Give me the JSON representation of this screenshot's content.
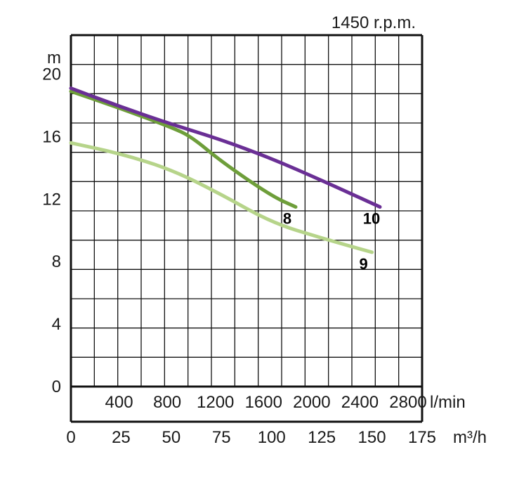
{
  "chart_data": {
    "type": "line",
    "title": "1450 r.p.m.",
    "ylabel": "m",
    "ylim": [
      0,
      22.5
    ],
    "yticks": [
      0,
      4,
      8,
      12,
      16,
      20
    ],
    "x_units": [
      {
        "label": "l/min",
        "ticks": [
          400,
          800,
          1200,
          1600,
          2000,
          2400,
          2800
        ],
        "range": [
          0,
          2916.7
        ]
      },
      {
        "label": "m³/h",
        "ticks": [
          0,
          25,
          50,
          75,
          100,
          125,
          150,
          175
        ],
        "range": [
          0,
          175
        ]
      }
    ],
    "x_unit_used_for_series": "m³/h",
    "grid": true,
    "series": [
      {
        "name": "8",
        "color": "#6e9e3a",
        "x": [
          0,
          25,
          50,
          60,
          75,
          100,
          112
        ],
        "y": [
          18.9,
          17.8,
          16.6,
          16.0,
          14.4,
          12.2,
          11.5
        ]
      },
      {
        "name": "9",
        "color": "#b6d48a",
        "x": [
          0,
          25,
          50,
          75,
          100,
          125,
          150
        ],
        "y": [
          15.6,
          14.9,
          13.9,
          12.3,
          10.5,
          9.5,
          8.6
        ]
      },
      {
        "name": "10",
        "color": "#6a2f95",
        "x": [
          0,
          25,
          50,
          75,
          100,
          125,
          154
        ],
        "y": [
          19.1,
          17.9,
          16.8,
          15.8,
          14.6,
          13.2,
          11.5
        ]
      }
    ]
  }
}
